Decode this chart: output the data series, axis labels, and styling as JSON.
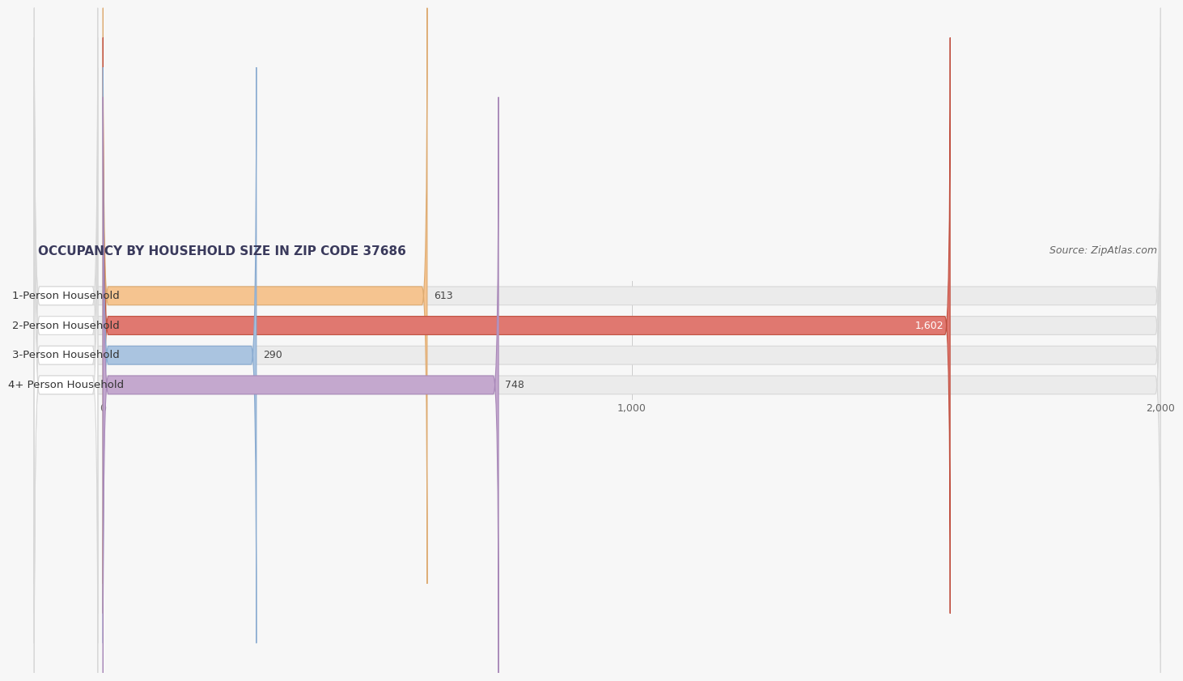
{
  "title": "OCCUPANCY BY HOUSEHOLD SIZE IN ZIP CODE 37686",
  "source": "Source: ZipAtlas.com",
  "categories": [
    "1-Person Household",
    "2-Person Household",
    "3-Person Household",
    "4+ Person Household"
  ],
  "values": [
    613,
    1602,
    290,
    748
  ],
  "bar_colors": [
    "#f5c490",
    "#e07870",
    "#aac4e0",
    "#c4a8ce"
  ],
  "bar_edge_colors": [
    "#ddaa70",
    "#c05040",
    "#88aad0",
    "#a888b8"
  ],
  "value_labels": [
    "613",
    "1,602",
    "290",
    "748"
  ],
  "value_label_inside": [
    false,
    true,
    false,
    false
  ],
  "xlim": [
    -130,
    2000
  ],
  "xlim_display": [
    0,
    2000
  ],
  "xticks": [
    0,
    1000,
    2000
  ],
  "xtick_labels": [
    "0",
    "1,000",
    "2,000"
  ],
  "background_color": "#f7f7f7",
  "bar_bg_color": "#ebebeb",
  "bar_bg_edge_color": "#d8d8d8",
  "white_label_bg": "#ffffff",
  "title_fontsize": 11,
  "source_fontsize": 9,
  "label_fontsize": 9.5,
  "value_fontsize": 9
}
